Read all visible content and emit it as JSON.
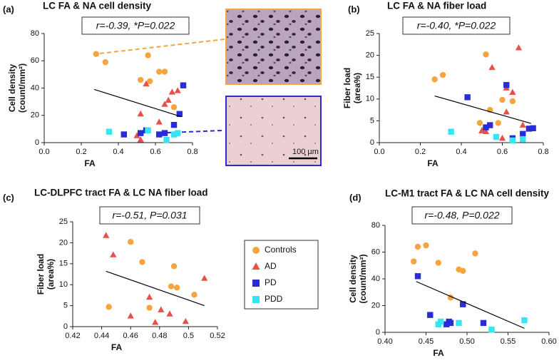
{
  "legend": [
    {
      "name": "Controls",
      "color": "#f5a43f",
      "marker": "circle"
    },
    {
      "name": "AD",
      "color": "#ea4f4a",
      "marker": "triangle"
    },
    {
      "name": "PD",
      "color": "#2a2ad6",
      "marker": "square"
    },
    {
      "name": "PDD",
      "color": "#38e4f2",
      "marker": "square"
    }
  ],
  "scale_bar": "100 µm",
  "chart_data": [
    {
      "type": "scatter",
      "panel": "(a)",
      "title": "LC FA & NA cell density",
      "annotation": "r=-0.39, *P=0.022",
      "xlabel": "FA",
      "ylabel": [
        "Cell density",
        "(count/mm²)"
      ],
      "xlim": [
        0,
        0.8
      ],
      "xticks": [
        {
          "value": 0,
          "label": "0.0"
        },
        0.2,
        0.4,
        0.6,
        0.8
      ],
      "ylim": [
        0,
        80
      ],
      "yticks": [
        0,
        20,
        40,
        60,
        80
      ],
      "series": [
        {
          "x": [
            0.28,
            0.33,
            0.56,
            0.52,
            0.57,
            0.62,
            0.65,
            0.7
          ],
          "values": [
            65,
            59,
            64,
            46,
            45,
            52,
            52,
            26
          ]
        },
        {
          "x": [
            0.52,
            0.55,
            0.62,
            0.65,
            0.67,
            0.69,
            0.72,
            0.52,
            0.5
          ],
          "values": [
            21,
            43,
            15,
            28,
            31,
            37,
            38,
            2,
            5
          ]
        },
        {
          "x": [
            0.43,
            0.52,
            0.55,
            0.62,
            0.65,
            0.7,
            0.73,
            0.75
          ],
          "values": [
            6,
            7,
            9,
            6,
            7,
            13,
            21,
            42
          ]
        },
        {
          "x": [
            0.35,
            0.56,
            0.66,
            0.7,
            0.72
          ],
          "values": [
            8,
            9,
            2,
            6,
            7
          ]
        }
      ],
      "trend": {
        "x": [
          0.27,
          0.74
        ],
        "values": [
          39,
          19
        ]
      }
    },
    {
      "type": "scatter",
      "panel": "(b)",
      "title": "LC FA & NA fiber load",
      "annotation": "r=-0.40, *P=0.022",
      "xlabel": "FA",
      "ylabel": [
        "Fiber load",
        "(area%)"
      ],
      "xlim": [
        0,
        0.8
      ],
      "xticks": [
        {
          "value": 0,
          "label": "0.0"
        },
        0.2,
        0.4,
        0.6,
        0.8
      ],
      "ylim": [
        0,
        25
      ],
      "yticks": [
        0,
        5,
        10,
        15,
        20,
        25
      ],
      "series": [
        {
          "x": [
            0.27,
            0.31,
            0.52,
            0.49,
            0.51,
            0.54,
            0.58,
            0.6,
            0.65
          ],
          "values": [
            14.5,
            15.5,
            20.2,
            4.5,
            3,
            7.5,
            4.5,
            9.8,
            9.5
          ]
        },
        {
          "x": [
            0.68,
            0.55,
            0.62,
            0.65,
            0.62,
            0.5,
            0.52,
            0.6,
            0.7
          ],
          "values": [
            21.7,
            17.2,
            12.5,
            11.5,
            7,
            2.7,
            2.5,
            1,
            4
          ]
        },
        {
          "x": [
            0.43,
            0.52,
            0.54,
            0.62,
            0.65,
            0.7,
            0.73,
            0.75
          ],
          "values": [
            10.4,
            3.5,
            4,
            13.2,
            1,
            2,
            3.2,
            3.3
          ]
        },
        {
          "x": [
            0.35,
            0.57,
            0.65,
            0.7
          ],
          "values": [
            2.5,
            1.3,
            0.5,
            0.8
          ]
        }
      ],
      "trend": {
        "x": [
          0.27,
          0.74
        ],
        "values": [
          10.7,
          4.4
        ]
      }
    },
    {
      "type": "scatter",
      "panel": "(c)",
      "title": "LC-DLPFC tract FA & LC NA fiber load",
      "annotation": "r=-0.51, P=0.031",
      "xlabel": "FA",
      "ylabel": [
        "Fiber load",
        "(area%)"
      ],
      "xlim": [
        0.42,
        0.52
      ],
      "xticks": [
        0.42,
        0.44,
        0.46,
        0.48,
        0.5,
        0.52
      ],
      "ylim": [
        0,
        25
      ],
      "yticks": [
        0,
        5,
        10,
        15,
        20,
        25
      ],
      "series": [
        {
          "x": [
            0.445,
            0.46,
            0.468,
            0.473,
            0.488,
            0.49,
            0.492,
            0.504
          ],
          "values": [
            4.7,
            20.2,
            15.4,
            4.5,
            9.6,
            14.4,
            9.3,
            7.6
          ]
        },
        {
          "x": [
            0.443,
            0.448,
            0.46,
            0.473,
            0.477,
            0.481,
            0.487,
            0.498,
            0.511
          ],
          "values": [
            21.7,
            17.1,
            2.5,
            7,
            1,
            4,
            3,
            1.2,
            11.5
          ]
        },
        {
          "x": [],
          "values": []
        },
        {
          "x": [],
          "values": []
        }
      ],
      "trend": {
        "x": [
          0.443,
          0.511
        ],
        "values": [
          13.2,
          5
        ]
      }
    },
    {
      "type": "scatter",
      "panel": "(d)",
      "title": "LC-M1 tract FA & LC NA cell density",
      "annotation": "r=-0.48, P=0.022",
      "xlabel": "FA",
      "ylabel": [
        "Cell density",
        "(count/mm²)"
      ],
      "xlim": [
        0.4,
        0.6
      ],
      "xticks": [
        {
          "value": 0.4,
          "label": "0.40"
        },
        0.45,
        {
          "value": 0.5,
          "label": "0.50"
        },
        0.55,
        {
          "value": 0.6,
          "label": "0.60"
        }
      ],
      "ylim": [
        0,
        80
      ],
      "yticks": [
        0,
        20,
        40,
        60,
        80
      ],
      "series": [
        {
          "x": [
            0.435,
            0.44,
            0.45,
            0.465,
            0.49,
            0.495,
            0.51,
            0.48
          ],
          "values": [
            53,
            64,
            65,
            52,
            47,
            46,
            59,
            26
          ]
        },
        {
          "x": [],
          "values": []
        },
        {
          "x": [
            0.44,
            0.455,
            0.475,
            0.478,
            0.48,
            0.495,
            0.52
          ],
          "values": [
            42,
            13,
            6,
            8,
            7,
            21,
            7
          ]
        },
        {
          "x": [
            0.465,
            0.468,
            0.49,
            0.53,
            0.57
          ],
          "values": [
            6,
            8,
            7,
            2,
            9
          ]
        }
      ],
      "trend": {
        "x": [
          0.438,
          0.57
        ],
        "values": [
          38,
          3
        ]
      }
    }
  ]
}
